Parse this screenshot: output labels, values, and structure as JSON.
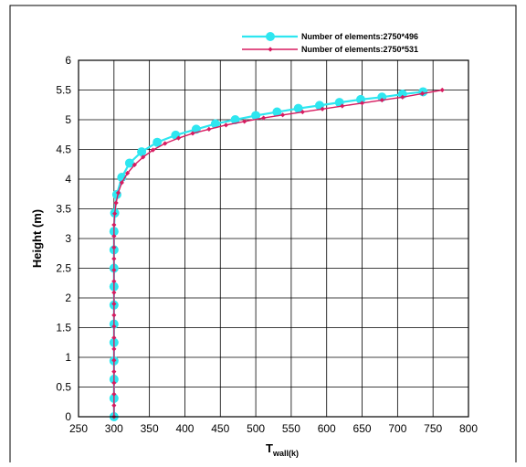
{
  "chart_data": {
    "type": "line",
    "xlabel": "T",
    "xlabel_sub": "wall(k)",
    "ylabel": "Height (m)",
    "xlim": [
      250,
      800
    ],
    "ylim": [
      0,
      6
    ],
    "xticks": [
      250,
      300,
      350,
      400,
      450,
      500,
      550,
      600,
      650,
      700,
      750,
      800
    ],
    "yticks": [
      0,
      0.5,
      1,
      1.5,
      2,
      2.5,
      3,
      3.5,
      4,
      4.5,
      5,
      5.5,
      6
    ],
    "grid": true,
    "legend": "top-right",
    "series": [
      {
        "name": "Number of elements:2750*496",
        "color": "#2ee6f0",
        "marker": "circle",
        "x": [
          300,
          300,
          300,
          300,
          300,
          300,
          300,
          300,
          300,
          300,
          300,
          301,
          304,
          311,
          322,
          339,
          361,
          387,
          416,
          443,
          471,
          500,
          530,
          560,
          590,
          618,
          648,
          678,
          707,
          736
        ],
        "y": [
          0,
          0.31,
          0.63,
          0.94,
          1.25,
          1.56,
          1.88,
          2.19,
          2.5,
          2.81,
          3.12,
          3.43,
          3.74,
          4.03,
          4.27,
          4.46,
          4.62,
          4.74,
          4.84,
          4.93,
          5.0,
          5.07,
          5.13,
          5.19,
          5.24,
          5.29,
          5.34,
          5.38,
          5.43,
          5.47
        ]
      },
      {
        "name": "Number of elements:2750*531",
        "color": "#d81b60",
        "marker": "diamond",
        "x": [
          300,
          300,
          300,
          300,
          300,
          300,
          300,
          300,
          300,
          300,
          300,
          300,
          300,
          300,
          300,
          300,
          300,
          300,
          301,
          303,
          306,
          311,
          319,
          329,
          341,
          355,
          372,
          391,
          411,
          434,
          458,
          484,
          511,
          538,
          566,
          594,
          622,
          650,
          678,
          707,
          735,
          763
        ],
        "y": [
          0,
          0.19,
          0.38,
          0.57,
          0.76,
          0.95,
          1.14,
          1.33,
          1.52,
          1.71,
          1.9,
          2.09,
          2.28,
          2.47,
          2.66,
          2.85,
          3.04,
          3.23,
          3.42,
          3.6,
          3.77,
          3.94,
          4.1,
          4.24,
          4.37,
          4.49,
          4.6,
          4.69,
          4.77,
          4.84,
          4.91,
          4.97,
          5.03,
          5.08,
          5.13,
          5.18,
          5.23,
          5.28,
          5.33,
          5.38,
          5.44,
          5.5
        ]
      }
    ]
  }
}
